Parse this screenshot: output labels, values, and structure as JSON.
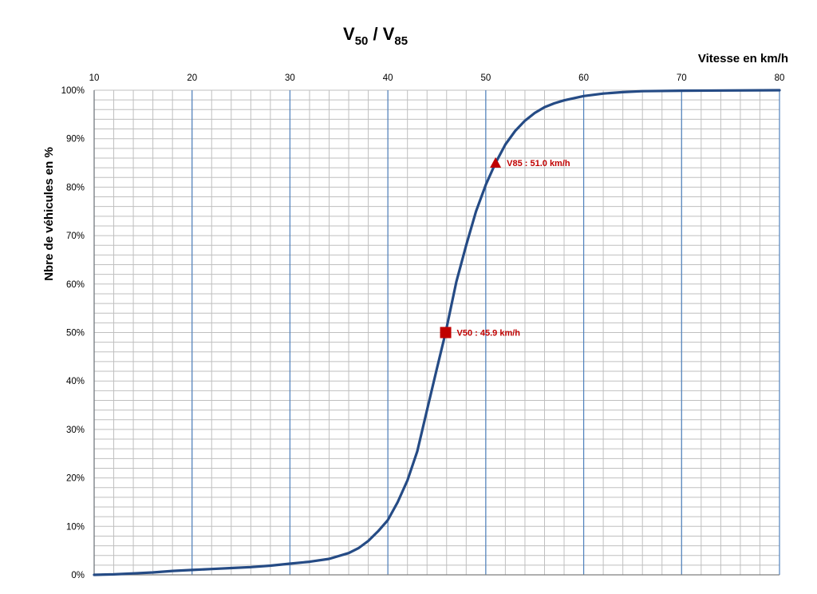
{
  "chart_data": {
    "type": "line",
    "title_main": "V",
    "title_sub1": "50",
    "title_sep": " / V",
    "title_sub2": "85",
    "xlabel": "Vitesse en km/h",
    "ylabel": "Nbre de véhicules  en %",
    "xlim": [
      10,
      80
    ],
    "ylim": [
      0,
      100
    ],
    "x_ticks": [
      10,
      20,
      30,
      40,
      50,
      60,
      70,
      80
    ],
    "x_tick_labels": [
      "10",
      "20",
      "30",
      "40",
      "50",
      "60",
      "70",
      "80"
    ],
    "y_ticks": [
      0,
      10,
      20,
      30,
      40,
      50,
      60,
      70,
      80,
      90,
      100
    ],
    "y_tick_labels": [
      "0%",
      "10%",
      "20%",
      "30%",
      "40%",
      "50%",
      "60%",
      "70%",
      "80%",
      "90%",
      "100%"
    ],
    "x_axis_position": "top",
    "grid": true,
    "colors": {
      "line": "#254b85",
      "major_grid": "#4f81bd",
      "minor_grid": "#bfbfbf",
      "marker": "#c00000"
    },
    "series": [
      {
        "x": [
          10,
          12,
          14,
          16,
          18,
          20,
          22,
          24,
          26,
          28,
          30,
          32,
          34,
          36,
          37,
          38,
          39,
          40,
          41,
          42,
          43,
          44,
          45,
          45.9,
          47,
          48,
          49,
          50,
          51,
          52,
          53,
          54,
          55,
          56,
          57,
          58,
          60,
          62,
          64,
          66,
          70,
          80
        ],
        "y": [
          0,
          0.1,
          0.3,
          0.5,
          0.8,
          1,
          1.2,
          1.4,
          1.6,
          1.9,
          2.3,
          2.7,
          3.3,
          4.5,
          5.5,
          7,
          9,
          11.3,
          15,
          19.5,
          25.5,
          34,
          42.5,
          50,
          60.5,
          68,
          75,
          80.5,
          85,
          88.8,
          91.6,
          93.7,
          95.3,
          96.5,
          97.3,
          97.9,
          98.8,
          99.3,
          99.6,
          99.8,
          99.9,
          100
        ]
      }
    ],
    "annotations": [
      {
        "label": "V85 :  51.0 km/h",
        "x": 51.0,
        "y": 85,
        "marker": "triangle"
      },
      {
        "label": "V50 :  45.9 km/h",
        "x": 45.9,
        "y": 50,
        "marker": "square"
      }
    ]
  }
}
